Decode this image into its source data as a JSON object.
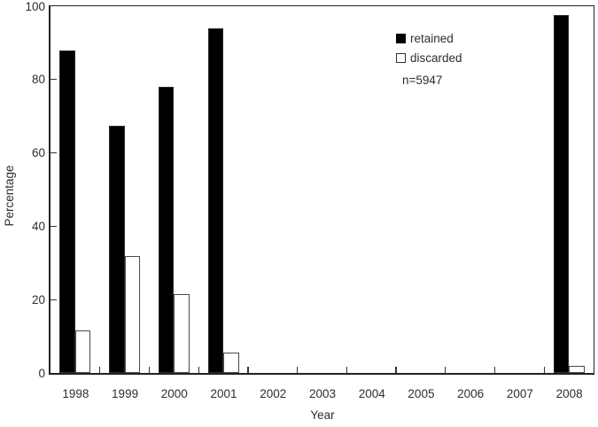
{
  "chart_data": {
    "type": "bar",
    "title": "",
    "xlabel": "Year",
    "ylabel": "Percentage",
    "categories": [
      "1998",
      "1999",
      "2000",
      "2001",
      "2002",
      "2003",
      "2004",
      "2005",
      "2006",
      "2007",
      "2008"
    ],
    "series": [
      {
        "name": "retained",
        "style": "filled",
        "color": "#000000",
        "values": [
          88,
          67.5,
          78,
          94,
          null,
          null,
          null,
          null,
          null,
          null,
          97.5
        ]
      },
      {
        "name": "discarded",
        "style": "hollow",
        "color": "#ffffff",
        "values": [
          11.5,
          32,
          21.5,
          5.5,
          null,
          null,
          null,
          null,
          null,
          null,
          2
        ]
      }
    ],
    "ylim": [
      0,
      100
    ],
    "yticks": [
      0,
      20,
      40,
      60,
      80,
      100
    ],
    "grid": false,
    "legend_position": "top-right",
    "annotation": "n=5947",
    "bar_edge_color": "#4a4a4a",
    "text_color": "#2e2e2e"
  },
  "legend": {
    "retained_label": "retained",
    "discarded_label": "discarded",
    "annotation": "n=5947"
  },
  "axes": {
    "x_title": "Year",
    "y_title": "Percentage"
  }
}
